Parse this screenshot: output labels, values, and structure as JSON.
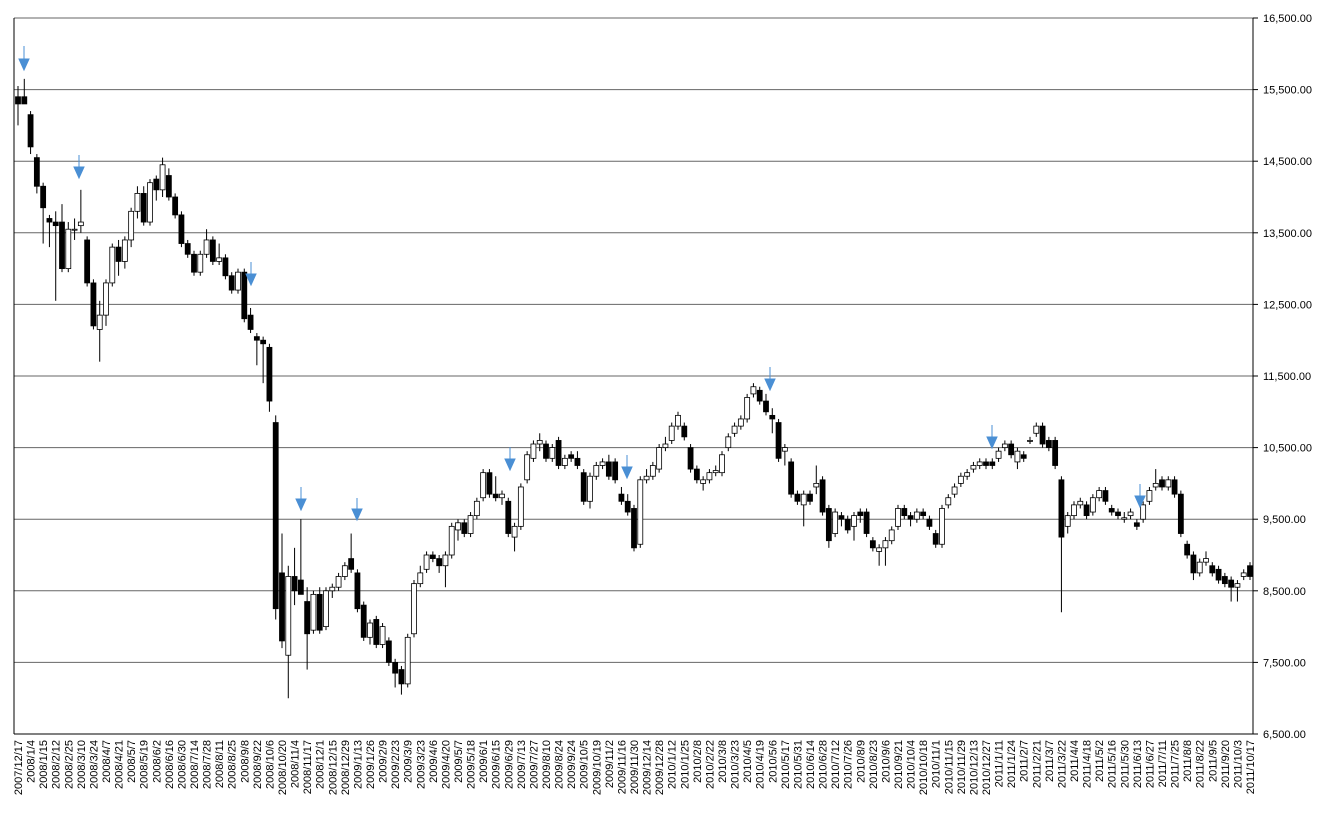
{
  "chart_data": {
    "type": "candlestick",
    "categories": [
      "2007/12/17",
      null,
      "2008/1/4",
      null,
      "2008/1/15",
      null,
      "2008/2/12",
      null,
      "2008/2/25",
      null,
      "2008/3/10",
      null,
      "2008/3/24",
      null,
      "2008/4/7",
      null,
      "2008/4/21",
      null,
      "2008/5/7",
      null,
      "2008/5/19",
      null,
      "2008/6/2",
      null,
      "2008/6/16",
      null,
      "2008/6/30",
      null,
      "2008/7/14",
      null,
      "2008/7/28",
      null,
      "2008/8/11",
      null,
      "2008/8/25",
      null,
      "2008/9/8",
      null,
      "2008/9/22",
      null,
      "2008/10/6",
      null,
      "2008/10/20",
      null,
      "2008/11/4",
      null,
      "2008/11/17",
      null,
      "2008/12/1",
      null,
      "2008/12/15",
      null,
      "2008/12/29",
      null,
      "2009/1/13",
      null,
      "2009/1/26",
      null,
      "2009/2/9",
      null,
      "2009/2/23",
      null,
      "2009/3/9",
      null,
      "2009/3/23",
      null,
      "2009/4/6",
      null,
      "2009/4/20",
      null,
      "2009/5/7",
      null,
      "2009/5/18",
      null,
      "2009/6/1",
      null,
      "2009/6/15",
      null,
      "2009/6/29",
      null,
      "2009/7/13",
      null,
      "2009/7/27",
      null,
      "2009/8/10",
      null,
      "2009/8/24",
      null,
      "2009/9/24",
      null,
      "2009/10/5",
      null,
      "2009/10/19",
      null,
      "2009/11/2",
      null,
      "2009/11/16",
      null,
      "2009/11/30",
      null,
      "2009/12/14",
      null,
      "2009/12/28",
      null,
      "2010/1/12",
      null,
      "2010/1/25",
      null,
      "2010/2/8",
      null,
      "2010/2/22",
      null,
      "2010/3/8",
      null,
      "2010/3/23",
      null,
      "2010/4/5",
      null,
      "2010/4/19",
      null,
      "2010/5/6",
      null,
      "2010/5/17",
      null,
      "2010/5/31",
      null,
      "2010/6/14",
      null,
      "2010/6/28",
      null,
      "2010/7/12",
      null,
      "2010/7/26",
      null,
      "2010/8/9",
      null,
      "2010/8/23",
      null,
      "2010/9/6",
      null,
      "2010/9/21",
      null,
      "2010/10/4",
      null,
      "2010/10/18",
      null,
      "2010/11/1",
      null,
      "2010/11/15",
      null,
      "2010/11/29",
      null,
      "2010/12/13",
      null,
      "2010/12/27",
      null,
      "2011/1/11",
      null,
      "2011/1/24",
      null,
      "2011/2/7",
      null,
      "2011/2/21",
      null,
      "2011/3/7",
      null,
      "2011/3/22",
      null,
      "2011/4/4",
      null,
      "2011/4/18",
      null,
      "2011/5/2",
      null,
      "2011/5/16",
      null,
      "2011/5/30",
      null,
      "2011/6/13",
      null,
      "2011/6/27",
      null,
      "2011/7/11",
      null,
      "2011/7/25",
      null,
      "2011/8/8",
      null,
      "2011/8/22",
      null,
      "2011/9/5",
      null,
      "2011/9/20",
      null,
      "2011/10/3",
      null,
      "2011/10/17"
    ],
    "ohlc": [
      [
        15400,
        15550,
        15000,
        15300
      ],
      [
        15400,
        15650,
        15300,
        15300
      ],
      [
        15150,
        15200,
        14600,
        14700
      ],
      [
        14550,
        14600,
        14050,
        14150
      ],
      [
        14150,
        14200,
        13350,
        13850
      ],
      [
        13700,
        13750,
        13300,
        13650
      ],
      [
        13650,
        13800,
        12550,
        13600
      ],
      [
        13650,
        13900,
        12950,
        13000
      ],
      [
        13000,
        13650,
        12950,
        13550
      ],
      [
        13550,
        13700,
        13400,
        13550
      ],
      [
        13600,
        14100,
        13500,
        13650
      ],
      [
        13400,
        13450,
        12750,
        12800
      ],
      [
        12800,
        12850,
        12150,
        12200
      ],
      [
        12150,
        12550,
        11700,
        12350
      ],
      [
        12350,
        12850,
        12200,
        12800
      ],
      [
        12800,
        13350,
        12750,
        13300
      ],
      [
        13300,
        13400,
        12900,
        13100
      ],
      [
        13100,
        13450,
        13000,
        13400
      ],
      [
        13400,
        13850,
        13300,
        13800
      ],
      [
        13800,
        14150,
        13700,
        14050
      ],
      [
        14050,
        14150,
        13600,
        13650
      ],
      [
        13650,
        14250,
        13600,
        14200
      ],
      [
        14250,
        14300,
        13950,
        14100
      ],
      [
        14100,
        14550,
        14000,
        14450
      ],
      [
        14300,
        14400,
        13950,
        14000
      ],
      [
        14000,
        14050,
        13700,
        13750
      ],
      [
        13750,
        13800,
        13300,
        13350
      ],
      [
        13350,
        13400,
        13150,
        13200
      ],
      [
        13200,
        13250,
        12900,
        12950
      ],
      [
        12950,
        13250,
        12900,
        13200
      ],
      [
        13200,
        13550,
        13150,
        13400
      ],
      [
        13400,
        13450,
        13050,
        13100
      ],
      [
        13100,
        13350,
        13050,
        13150
      ],
      [
        13150,
        13200,
        12850,
        12900
      ],
      [
        12900,
        12950,
        12650,
        12700
      ],
      [
        12700,
        13000,
        12650,
        12950
      ],
      [
        12950,
        13000,
        12250,
        12300
      ],
      [
        12350,
        12450,
        12100,
        12150
      ],
      [
        12050,
        12100,
        11650,
        12000
      ],
      [
        12000,
        12050,
        11400,
        11950
      ],
      [
        11900,
        11950,
        11000,
        11150
      ],
      [
        10850,
        10950,
        8100,
        8250
      ],
      [
        8750,
        9300,
        7700,
        7800
      ],
      [
        7600,
        8850,
        7000,
        8700
      ],
      [
        8700,
        9100,
        8300,
        8500
      ],
      [
        8650,
        9500,
        8500,
        8450
      ],
      [
        8350,
        8550,
        7400,
        7900
      ],
      [
        7950,
        8500,
        7900,
        8450
      ],
      [
        8450,
        8550,
        7900,
        7950
      ],
      [
        8000,
        8550,
        7950,
        8500
      ],
      [
        8500,
        8600,
        8400,
        8550
      ],
      [
        8550,
        8750,
        8500,
        8700
      ],
      [
        8700,
        8900,
        8650,
        8850
      ],
      [
        8950,
        9300,
        8750,
        8800
      ],
      [
        8750,
        8800,
        8200,
        8250
      ],
      [
        8300,
        8350,
        7800,
        7850
      ],
      [
        7850,
        8100,
        7750,
        8050
      ],
      [
        8100,
        8150,
        7700,
        7750
      ],
      [
        7750,
        8050,
        7700,
        8000
      ],
      [
        7800,
        7850,
        7450,
        7500
      ],
      [
        7500,
        7550,
        7150,
        7350
      ],
      [
        7400,
        7450,
        7050,
        7200
      ],
      [
        7200,
        7900,
        7150,
        7850
      ],
      [
        7900,
        8650,
        7850,
        8600
      ],
      [
        8600,
        8850,
        8550,
        8750
      ],
      [
        8800,
        9050,
        8750,
        9000
      ],
      [
        9000,
        9050,
        8900,
        8950
      ],
      [
        8950,
        9000,
        8750,
        8850
      ],
      [
        8850,
        9050,
        8550,
        9000
      ],
      [
        9000,
        9450,
        8950,
        9400
      ],
      [
        9350,
        9500,
        9200,
        9450
      ],
      [
        9450,
        9500,
        9250,
        9300
      ],
      [
        9300,
        9600,
        9250,
        9550
      ],
      [
        9550,
        9800,
        9500,
        9750
      ],
      [
        9800,
        10200,
        9750,
        10150
      ],
      [
        10150,
        10200,
        9800,
        9850
      ],
      [
        9850,
        10100,
        9750,
        9800
      ],
      [
        9800,
        9900,
        9700,
        9850
      ],
      [
        9750,
        9800,
        9250,
        9300
      ],
      [
        9250,
        9450,
        9050,
        9400
      ],
      [
        9400,
        10000,
        9350,
        9950
      ],
      [
        10050,
        10450,
        10000,
        10400
      ],
      [
        10350,
        10600,
        10300,
        10550
      ],
      [
        10550,
        10700,
        10450,
        10600
      ],
      [
        10550,
        10600,
        10300,
        10350
      ],
      [
        10350,
        10550,
        10300,
        10500
      ],
      [
        10600,
        10650,
        10200,
        10250
      ],
      [
        10250,
        10400,
        10200,
        10350
      ],
      [
        10400,
        10450,
        10300,
        10350
      ],
      [
        10350,
        10450,
        10200,
        10250
      ],
      [
        10150,
        10200,
        9700,
        9750
      ],
      [
        9750,
        10150,
        9650,
        10100
      ],
      [
        10100,
        10300,
        10050,
        10250
      ],
      [
        10250,
        10350,
        10200,
        10300
      ],
      [
        10300,
        10400,
        10050,
        10100
      ],
      [
        10300,
        10350,
        10000,
        10050
      ],
      [
        9850,
        9950,
        9700,
        9750
      ],
      [
        9750,
        9850,
        9550,
        9600
      ],
      [
        9650,
        9700,
        9050,
        9100
      ],
      [
        9150,
        10100,
        9100,
        10050
      ],
      [
        10050,
        10200,
        10000,
        10100
      ],
      [
        10100,
        10300,
        10050,
        10250
      ],
      [
        10200,
        10550,
        10150,
        10500
      ],
      [
        10500,
        10650,
        10450,
        10550
      ],
      [
        10600,
        10850,
        10550,
        10800
      ],
      [
        10800,
        11000,
        10750,
        10950
      ],
      [
        10800,
        10850,
        10600,
        10650
      ],
      [
        10500,
        10550,
        10150,
        10200
      ],
      [
        10200,
        10250,
        10000,
        10050
      ],
      [
        10000,
        10100,
        9900,
        10050
      ],
      [
        10050,
        10200,
        10000,
        10150
      ],
      [
        10150,
        10250,
        10100,
        10180
      ],
      [
        10150,
        10450,
        10100,
        10400
      ],
      [
        10500,
        10700,
        10450,
        10650
      ],
      [
        10700,
        10850,
        10650,
        10800
      ],
      [
        10800,
        10950,
        10750,
        10900
      ],
      [
        10900,
        11250,
        10850,
        11200
      ],
      [
        11250,
        11400,
        11200,
        11350
      ],
      [
        11300,
        11350,
        11100,
        11150
      ],
      [
        11150,
        11250,
        10950,
        11000
      ],
      [
        10950,
        11050,
        10700,
        10900
      ],
      [
        10850,
        10900,
        10300,
        10350
      ],
      [
        10450,
        10550,
        10250,
        10500
      ],
      [
        10300,
        10350,
        9800,
        9850
      ],
      [
        9850,
        9900,
        9700,
        9750
      ],
      [
        9700,
        9900,
        9400,
        9850
      ],
      [
        9850,
        9900,
        9700,
        9750
      ],
      [
        9950,
        10250,
        9850,
        10000
      ],
      [
        10050,
        10100,
        9550,
        9600
      ],
      [
        9650,
        9700,
        9100,
        9200
      ],
      [
        9300,
        9650,
        9250,
        9600
      ],
      [
        9550,
        9600,
        9400,
        9500
      ],
      [
        9500,
        9550,
        9300,
        9350
      ],
      [
        9400,
        9600,
        9200,
        9550
      ],
      [
        9600,
        9650,
        9450,
        9550
      ],
      [
        9600,
        9650,
        9250,
        9300
      ],
      [
        9200,
        9250,
        9050,
        9100
      ],
      [
        9050,
        9150,
        8850,
        9100
      ],
      [
        9100,
        9250,
        8850,
        9200
      ],
      [
        9200,
        9400,
        9150,
        9350
      ],
      [
        9400,
        9700,
        9350,
        9650
      ],
      [
        9650,
        9700,
        9500,
        9550
      ],
      [
        9550,
        9600,
        9400,
        9500
      ],
      [
        9500,
        9650,
        9450,
        9600
      ],
      [
        9600,
        9650,
        9500,
        9550
      ],
      [
        9500,
        9550,
        9350,
        9400
      ],
      [
        9300,
        9350,
        9100,
        9150
      ],
      [
        9150,
        9700,
        9100,
        9650
      ],
      [
        9700,
        9850,
        9650,
        9800
      ],
      [
        9850,
        10000,
        9800,
        9950
      ],
      [
        10000,
        10150,
        9950,
        10100
      ],
      [
        10100,
        10200,
        10050,
        10150
      ],
      [
        10200,
        10300,
        10150,
        10250
      ],
      [
        10250,
        10350,
        10200,
        10300
      ],
      [
        10300,
        10350,
        10200,
        10250
      ],
      [
        10300,
        10350,
        10200,
        10250
      ],
      [
        10350,
        10500,
        10300,
        10450
      ],
      [
        10500,
        10600,
        10450,
        10550
      ],
      [
        10550,
        10600,
        10350,
        10400
      ],
      [
        10300,
        10500,
        10200,
        10450
      ],
      [
        10400,
        10450,
        10300,
        10350
      ],
      [
        10600,
        10650,
        10550,
        10600
      ],
      [
        10700,
        10850,
        10650,
        10800
      ],
      [
        10800,
        10850,
        10500,
        10550
      ],
      [
        10600,
        10650,
        10450,
        10500
      ],
      [
        10600,
        10650,
        10200,
        10250
      ],
      [
        10050,
        10100,
        8200,
        9250
      ],
      [
        9400,
        9600,
        9300,
        9550
      ],
      [
        9550,
        9750,
        9500,
        9700
      ],
      [
        9700,
        9800,
        9650,
        9750
      ],
      [
        9700,
        9750,
        9500,
        9550
      ],
      [
        9600,
        9850,
        9550,
        9800
      ],
      [
        9800,
        9950,
        9750,
        9900
      ],
      [
        9900,
        9950,
        9700,
        9750
      ],
      [
        9650,
        9700,
        9550,
        9600
      ],
      [
        9600,
        9650,
        9500,
        9550
      ],
      [
        9500,
        9600,
        9450,
        9520
      ],
      [
        9550,
        9650,
        9500,
        9600
      ],
      [
        9450,
        9500,
        9350,
        9400
      ],
      [
        9500,
        9750,
        9450,
        9700
      ],
      [
        9750,
        9950,
        9700,
        9900
      ],
      [
        9950,
        10200,
        9900,
        10000
      ],
      [
        10050,
        10100,
        9900,
        9950
      ],
      [
        9950,
        10100,
        9900,
        10050
      ],
      [
        10050,
        10100,
        9800,
        9850
      ],
      [
        9850,
        9900,
        9250,
        9300
      ],
      [
        9150,
        9200,
        8950,
        9000
      ],
      [
        9000,
        9050,
        8650,
        8750
      ],
      [
        8750,
        8950,
        8700,
        8900
      ],
      [
        8900,
        9050,
        8850,
        8950
      ],
      [
        8850,
        8900,
        8700,
        8750
      ],
      [
        8800,
        8850,
        8600,
        8650
      ],
      [
        8700,
        8750,
        8550,
        8600
      ],
      [
        8650,
        8700,
        8350,
        8550
      ],
      [
        8550,
        8650,
        8350,
        8600
      ],
      [
        8700,
        8800,
        8650,
        8750
      ],
      [
        8850,
        8900,
        8650,
        8700
      ]
    ],
    "ylim": [
      6500,
      16500
    ],
    "yticks": [
      {
        "value": 6500,
        "label": "6,500.00"
      },
      {
        "value": 7500,
        "label": "7,500.00"
      },
      {
        "value": 8500,
        "label": "8,500.00"
      },
      {
        "value": 9500,
        "label": "9,500.00"
      },
      {
        "value": 10500,
        "label": "10,500.00"
      },
      {
        "value": 11500,
        "label": "11,500.00"
      },
      {
        "value": 12500,
        "label": "12,500.00"
      },
      {
        "value": 13500,
        "label": "13,500.00"
      },
      {
        "value": 14500,
        "label": "14,500.00"
      },
      {
        "value": 15500,
        "label": "15,500.00"
      },
      {
        "value": 16500,
        "label": "16,500.00"
      }
    ],
    "grid": true,
    "up_color": "#ffffff",
    "down_color": "#000000"
  }
}
